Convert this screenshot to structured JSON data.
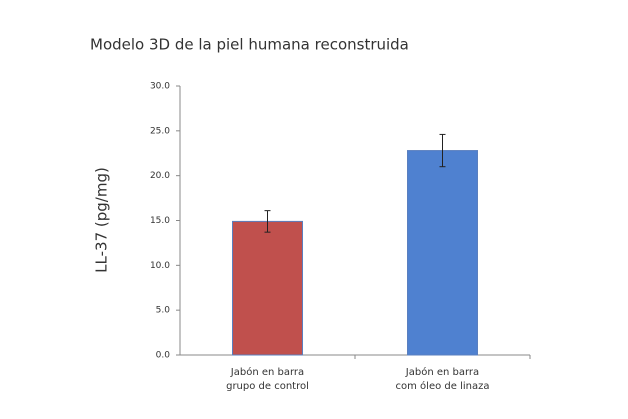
{
  "chart_data": {
    "type": "bar",
    "title": "Modelo 3D de la piel humana reconstruida",
    "y_label": "LL-37 (pg/mg)",
    "categories": [
      [
        "Jabón en barra",
        "grupo de control"
      ],
      [
        "Jabón en barra",
        "com óleo de linaza"
      ]
    ],
    "values": [
      14.9,
      22.8
    ],
    "errors": [
      1.2,
      1.8
    ],
    "colors": [
      "#c0504d",
      "#4f81d0"
    ],
    "ylim": [
      0,
      30
    ],
    "yticks": [
      {
        "value": 0,
        "label": "0.0"
      },
      {
        "value": 5,
        "label": "5.0"
      },
      {
        "value": 10,
        "label": "10.0"
      },
      {
        "value": 15,
        "label": "15.0"
      },
      {
        "value": 20,
        "label": "20.0"
      },
      {
        "value": 25,
        "label": "25.0"
      },
      {
        "value": 30,
        "label": "30.0"
      }
    ],
    "grid": false
  }
}
